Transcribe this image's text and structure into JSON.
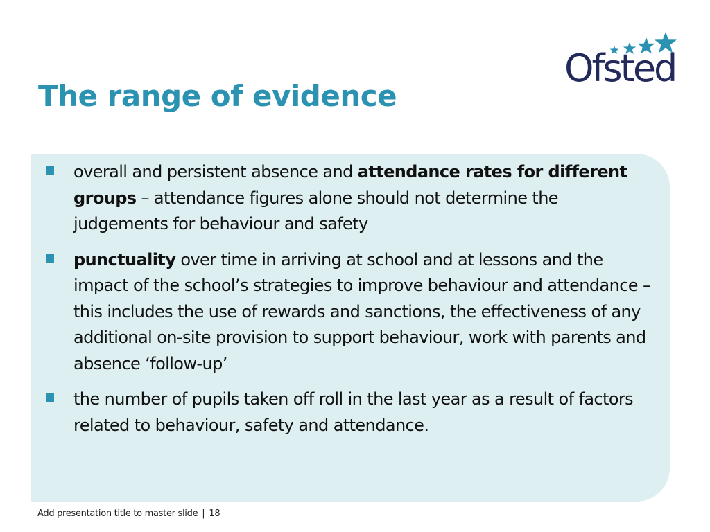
{
  "slide": {
    "title": "The range of evidence",
    "logo_text": "Ofsted",
    "logo_icon": "ofsted-stars-icon",
    "colors": {
      "title": "#2b93b1",
      "bullet": "#2b93b1",
      "panel": "#ddeff0",
      "logo": "#23295b",
      "logo_stars": "#2b93b1"
    }
  },
  "bullets": [
    {
      "t1": "overall and persistent absence and ",
      "b1": "attendance rates for different groups",
      "t2": " – attendance figures alone should not determine the judgements for behaviour and safety"
    },
    {
      "b1": "punctuality",
      "t1": " over time in arriving at school and at lessons and the impact of the school’s strategies to improve behaviour and attendance – this includes the use of rewards and sanctions, the effectiveness of any additional on-site provision to support behaviour, work with parents and absence ‘follow-up’"
    },
    {
      "t1": "the number of pupils taken off roll in the last year as a result of factors related to behaviour, safety and attendance."
    }
  ],
  "footer": {
    "text": "Add presentation title to master slide",
    "separator": "|",
    "page_number": "18"
  }
}
